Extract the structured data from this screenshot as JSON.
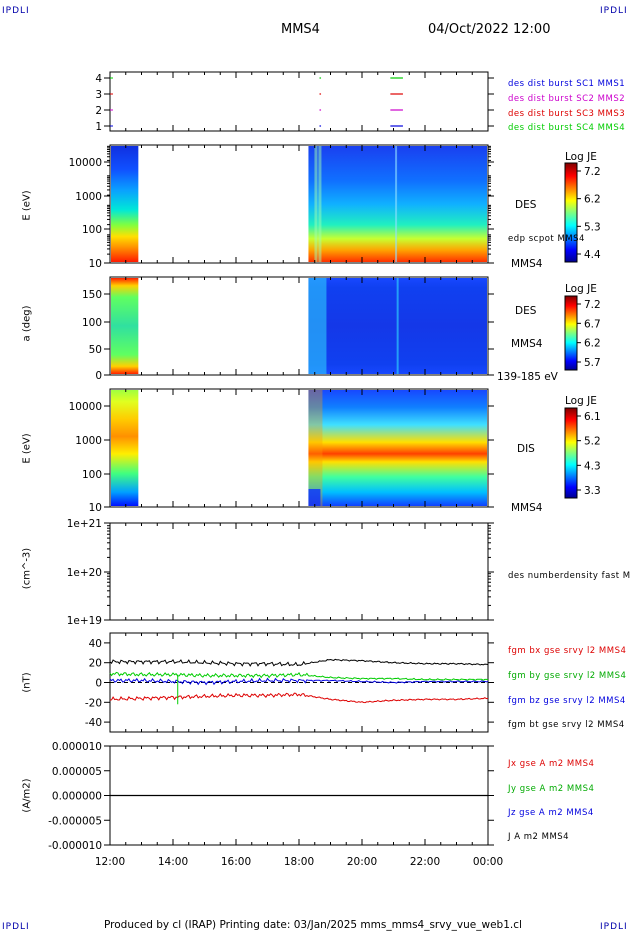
{
  "corners": {
    "top_left": "IPDLI",
    "top_right": "IPDLI",
    "bottom_left": "IPDLI",
    "bottom_right": "IPDLI"
  },
  "header": {
    "spacecraft": "MMS4",
    "datetime": "04/Oct/2022 12:00"
  },
  "footer": {
    "text": "Produced by cl (IRAP)   Printing date: 03/Jan/2025   mms_mms4_srvy_vue_web1.cl"
  },
  "colors": {
    "red": "#dd0000",
    "green": "#00cc00",
    "blue": "#0000dd",
    "magenta": "#cc00cc",
    "black": "#000000"
  },
  "chart_data": [
    {
      "type": "scatter",
      "panel": "burst-availability",
      "yticks": [
        "4",
        "3",
        "2",
        "1"
      ],
      "series": [
        {
          "name": "des dist burst SC1 MMS1",
          "color": "#0000dd",
          "y": 1
        },
        {
          "name": "des dist burst SC2 MMS2",
          "color": "#cc00cc",
          "y": 2
        },
        {
          "name": "des dist burst SC3 MMS3",
          "color": "#dd0000",
          "y": 3
        },
        {
          "name": "des dist burst SC4 MMS4",
          "color": "#00cc00",
          "y": 4
        }
      ],
      "burst_intervals_hours": [
        [
          18.65,
          18.7
        ],
        [
          20.9,
          21.3
        ]
      ]
    },
    {
      "type": "heatmap",
      "panel": "des-energy",
      "ylabel": "E (eV)",
      "yticks": [
        "10000",
        "1000",
        "100",
        "10"
      ],
      "side_label": "DES",
      "sub_label": "edp scpot MMS4",
      "bottom_label": "MMS4",
      "colorbar": {
        "title": "Log JE",
        "ticks": [
          "7.2",
          "6.2",
          "5.3",
          "4.4"
        ]
      },
      "data_gaps_hours": [
        [
          12.9,
          18.3
        ]
      ]
    },
    {
      "type": "heatmap",
      "panel": "des-pitch-angle",
      "ylabel": "a (deg)",
      "yticks": [
        "150",
        "100",
        "50",
        "0"
      ],
      "side_label": "DES",
      "sub_label": "MMS4",
      "energy_label": "139-185 eV",
      "colorbar": {
        "title": "Log JE",
        "ticks": [
          "7.2",
          "6.7",
          "6.2",
          "5.7"
        ]
      },
      "data_gaps_hours": [
        [
          12.9,
          18.3
        ]
      ]
    },
    {
      "type": "heatmap",
      "panel": "dis-energy",
      "ylabel": "E (eV)",
      "yticks": [
        "10000",
        "1000",
        "100",
        "10"
      ],
      "side_label": "DIS",
      "bottom_label": "MMS4",
      "colorbar": {
        "title": "Log JE",
        "ticks": [
          "6.1",
          "5.2",
          "4.3",
          "3.3"
        ]
      },
      "data_gaps_hours": [
        [
          12.9,
          18.3
        ]
      ]
    },
    {
      "type": "line",
      "panel": "density",
      "ylabel": "(cm^-3)",
      "yticks": [
        "1e+21",
        "1e+20",
        "1e+19"
      ],
      "series": [
        {
          "name": "des numberdensity fast M",
          "color": "#000000",
          "values": []
        }
      ]
    },
    {
      "type": "line",
      "panel": "magnetic-field",
      "ylabel": "(nT)",
      "yticks": [
        "40",
        "20",
        "0",
        "-20",
        "-40"
      ],
      "ylim": [
        -50,
        50
      ],
      "x_hours": [
        12,
        13,
        14,
        15,
        16,
        17,
        18,
        19,
        20,
        21,
        22,
        23,
        24
      ],
      "series": [
        {
          "name": "fgm bx gse srvy l2 MMS4",
          "color": "#dd0000",
          "values": [
            -17,
            -16,
            -15,
            -14,
            -13,
            -13,
            -12,
            -17,
            -20,
            -18,
            -17,
            -17,
            -16
          ]
        },
        {
          "name": "fgm by gse srvy l2 MMS4",
          "color": "#00cc00",
          "values": [
            9,
            8,
            8,
            7,
            7,
            7,
            8,
            5,
            4,
            4,
            3,
            3,
            3
          ]
        },
        {
          "name": "fgm bz gse srvy l2 MMS4",
          "color": "#0000dd",
          "values": [
            2,
            2,
            1,
            0,
            1,
            2,
            2,
            2,
            1,
            0,
            1,
            1,
            1
          ]
        },
        {
          "name": "fgm bt gse srvy l2 MMS4",
          "color": "#000000",
          "values": [
            21,
            21,
            21,
            20,
            19,
            19,
            18,
            23,
            22,
            20,
            19,
            19,
            18
          ]
        }
      ]
    },
    {
      "type": "line",
      "panel": "current-density",
      "ylabel": "(A/m2)",
      "yticks": [
        "0.000010",
        "0.000005",
        "0.000000",
        "-0.000005",
        "-0.000010"
      ],
      "ylim": [
        -1e-05,
        1e-05
      ],
      "series": [
        {
          "name": "Jx gse A m2 MMS4",
          "color": "#dd0000"
        },
        {
          "name": "Jy gse A m2 MMS4",
          "color": "#00cc00"
        },
        {
          "name": "Jz gse A m2 MMS4",
          "color": "#0000dd"
        },
        {
          "name": "J A m2 MMS4",
          "color": "#000000"
        }
      ]
    }
  ],
  "xaxis": {
    "ticks": [
      "12:00",
      "14:00",
      "16:00",
      "18:00",
      "20:00",
      "22:00",
      "00:00"
    ]
  }
}
